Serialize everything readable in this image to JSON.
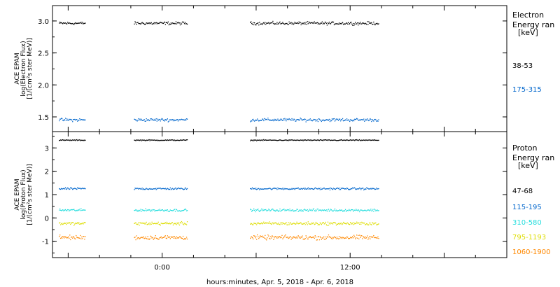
{
  "footer": {
    "xlabel": "hours:minutes, Apr.  5, 2018 - Apr.  6, 2018"
  },
  "chart_data": [
    {
      "type": "scatter",
      "panel": "electron",
      "ylabel_lines": [
        "ACE EPAM",
        "log(Electron Flux)",
        "[1/(cm²s ster MeV)]"
      ],
      "ylim": [
        1.27,
        3.24
      ],
      "yticks": [
        1.5,
        2.0,
        2.5,
        3.0
      ],
      "ytick_labels": [
        "1.5",
        "2.0",
        "2.5",
        "3.0"
      ],
      "legend_title": [
        "Electron",
        "Energy ran",
        "[keV]"
      ],
      "series": [
        {
          "name": "38-53",
          "color": "#000000",
          "mean": 2.97,
          "noise": 0.035,
          "segments": [
            [
              -6.6,
              -4.9
            ],
            [
              -1.8,
              1.6
            ],
            [
              5.6,
              13.8
            ]
          ]
        },
        {
          "name": "175-315",
          "color": "#0066cc",
          "mean": 1.46,
          "noise": 0.035,
          "segments": [
            [
              -6.6,
              -4.9
            ],
            [
              -1.8,
              1.6
            ],
            [
              5.6,
              13.8
            ]
          ]
        }
      ]
    },
    {
      "type": "scatter",
      "panel": "proton",
      "ylabel_lines": [
        "ACE EPAM",
        "log(Proton Flux)",
        "[1/(cm²s ster MeV)]"
      ],
      "ylim": [
        -1.7,
        3.7
      ],
      "yticks": [
        -1,
        0,
        1,
        2,
        3
      ],
      "ytick_labels": [
        "-1",
        "0",
        "1",
        "2",
        "3"
      ],
      "legend_title": [
        "Proton",
        "Energy ran",
        "[keV]"
      ],
      "series": [
        {
          "name": "47-68",
          "color": "#000000",
          "mean": 3.35,
          "noise": 0.03,
          "segments": [
            [
              -6.6,
              -4.9
            ],
            [
              -1.8,
              1.6
            ],
            [
              5.6,
              13.8
            ]
          ]
        },
        {
          "name": "115-195",
          "color": "#0066cc",
          "mean": 1.27,
          "noise": 0.06,
          "segments": [
            [
              -6.6,
              -4.9
            ],
            [
              -1.8,
              1.6
            ],
            [
              5.6,
              13.8
            ]
          ]
        },
        {
          "name": "310-580",
          "color": "#22dddd",
          "mean": 0.35,
          "noise": 0.08,
          "segments": [
            [
              -6.6,
              -4.9
            ],
            [
              -1.8,
              1.6
            ],
            [
              5.6,
              13.8
            ]
          ]
        },
        {
          "name": "795-1193",
          "color": "#dddd00",
          "mean": -0.22,
          "noise": 0.1,
          "segments": [
            [
              -6.6,
              -4.9
            ],
            [
              -1.8,
              1.6
            ],
            [
              5.6,
              13.8
            ]
          ]
        },
        {
          "name": "1060-1900",
          "color": "#ff8800",
          "mean": -0.82,
          "noise": 0.14,
          "segments": [
            [
              -6.6,
              -4.9
            ],
            [
              -1.8,
              1.6
            ],
            [
              5.6,
              13.8
            ]
          ]
        }
      ]
    }
  ],
  "x_axis": {
    "unit": "hours",
    "range": [
      -7,
      22
    ],
    "ticks": [
      0,
      12
    ],
    "tick_labels": [
      "0:00",
      "12:00"
    ],
    "minor_step": 2
  }
}
